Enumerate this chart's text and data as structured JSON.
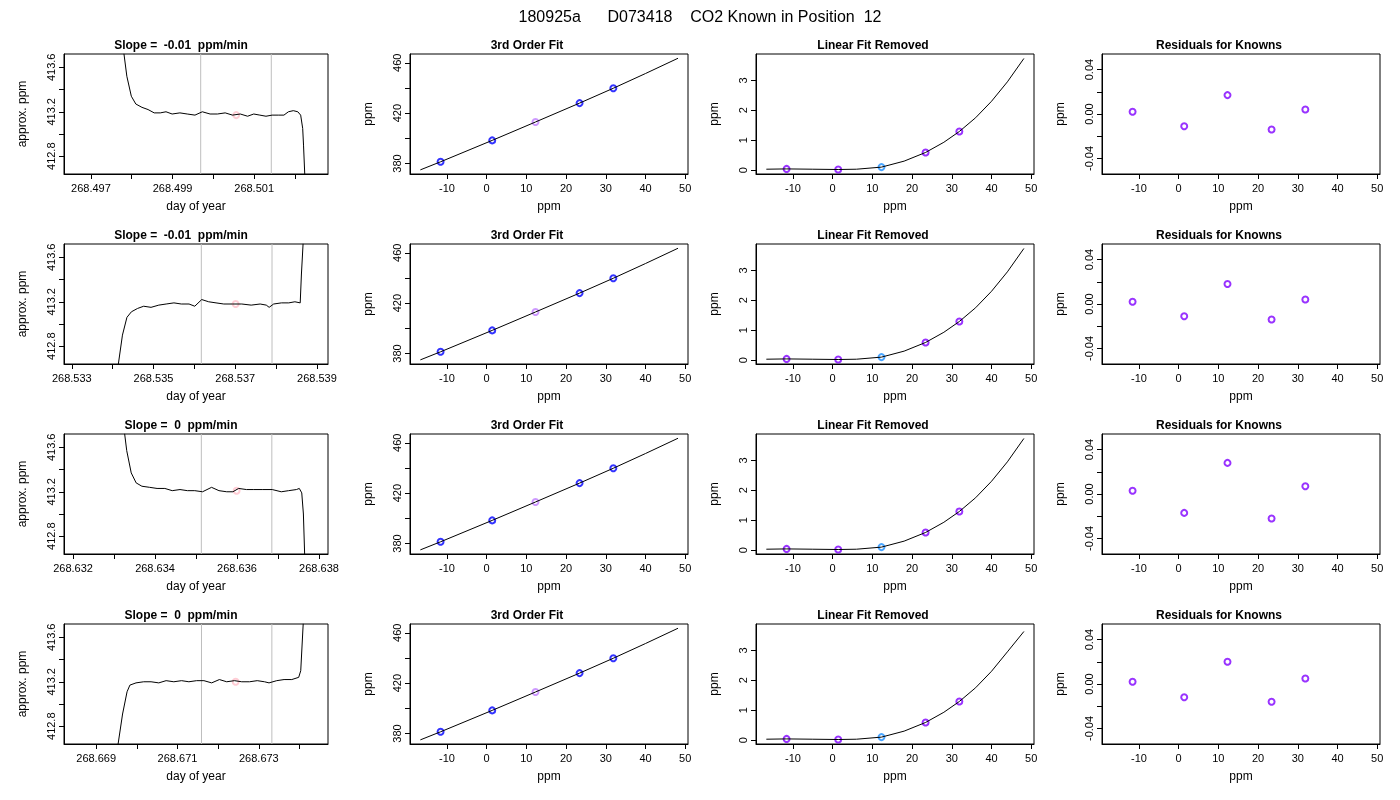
{
  "chart_data": [
    {
      "type": "line",
      "title": "Slope =  -0.01  ppm/min",
      "annotations": [
        "180925a      D073418    CO2 Known in Position  12"
      ],
      "xlabel": "day of year",
      "ylabel": "approx. ppm",
      "xlim": [
        268.49634,
        268.50281
      ],
      "xticks": [
        268.497,
        {
          "value": 268.498,
          "label": null
        },
        268.499,
        {
          "value": 268.5,
          "label": null
        },
        268.501,
        {
          "value": 268.502,
          "label": null
        }
      ],
      "ylim": [
        412.64,
        413.72
      ],
      "yticks": [
        412.8,
        {
          "value": 413.0,
          "label": null
        },
        413.2,
        {
          "value": 413.4,
          "label": null
        },
        413.6
      ],
      "ref_lines": [
        {
          "axis": "x",
          "value": 268.49969,
          "color": "#bebebe"
        },
        {
          "axis": "x",
          "value": 268.50142,
          "color": "#bebebe"
        }
      ],
      "series": [
        {
          "marker": "none",
          "color": "#000000",
          "x": [
            268.49781,
            268.49788,
            268.49799,
            268.4981,
            268.49825,
            268.4984,
            268.49855,
            268.4987,
            268.49884,
            268.49899,
            268.49918,
            268.49936,
            268.49955,
            268.49973,
            268.49992,
            268.5001,
            268.50029,
            268.50047,
            268.50066,
            268.50084,
            268.50099,
            268.50114,
            268.50129,
            268.50144,
            268.50159,
            268.50173,
            268.50184,
            268.50196,
            268.50207,
            268.50214,
            268.50219,
            268.50221,
            268.50224
          ],
          "values": [
            413.72,
            413.52,
            413.34,
            413.27,
            413.24,
            413.22,
            413.19,
            413.19,
            413.2,
            413.18,
            413.19,
            413.18,
            413.17,
            413.2,
            413.18,
            413.18,
            413.19,
            413.17,
            413.18,
            413.16,
            413.18,
            413.17,
            413.16,
            413.17,
            413.17,
            413.17,
            413.2,
            413.21,
            413.2,
            413.17,
            413.05,
            412.9,
            412.64
          ]
        },
        {
          "type": "scatter",
          "marker": "circle",
          "color": "#ffc0cb",
          "x": [
            268.50056
          ],
          "values": [
            413.17
          ]
        }
      ]
    },
    {
      "type": "line",
      "title": "3rd Order Fit",
      "xlabel": "ppm",
      "ylabel": "ppm",
      "xlim": [
        -19.3,
        50.7
      ],
      "xticks": [
        -10,
        0,
        10,
        20,
        30,
        40,
        50
      ],
      "ylim": [
        371.7,
        467
      ],
      "yticks": [
        380,
        {
          "value": 400,
          "label": null
        },
        420,
        {
          "value": 440,
          "label": null
        },
        460
      ],
      "series": [
        {
          "marker": "none",
          "color": "#000000",
          "x": [
            -16.6,
            -11.6,
            1.4,
            12.3,
            23.4,
            31.9,
            40,
            48.1
          ],
          "values": [
            375.1,
            381.4,
            398.4,
            413.0,
            428.0,
            439.8,
            451.5,
            463.5
          ]
        },
        {
          "type": "scatter",
          "marker": "circle",
          "color": "#0000ff",
          "x": [
            -11.6,
            1.4,
            12.3,
            23.4,
            31.9
          ],
          "values": [
            381.4,
            398.4,
            413.0,
            428.0,
            439.8
          ],
          "colors": [
            "#0000ff",
            "#0000ff",
            "#c080ff",
            "#0000ff",
            "#0000ff"
          ]
        }
      ]
    },
    {
      "type": "line",
      "title": "Linear Fit Removed",
      "xlabel": "ppm",
      "ylabel": "ppm",
      "xlim": [
        -19.3,
        50.7
      ],
      "xticks": [
        -10,
        0,
        10,
        20,
        30,
        40,
        50
      ],
      "ylim": [
        -0.13,
        3.88
      ],
      "yticks": [
        0,
        1,
        2,
        3
      ],
      "series": [
        {
          "marker": "none",
          "color": "#000000",
          "x": [
            -16.6,
            -11.6,
            -5,
            1.4,
            6,
            12.3,
            18,
            23.4,
            28,
            31.9,
            36,
            40,
            44,
            48.1
          ],
          "values": [
            0.03,
            0.04,
            0.03,
            0.02,
            0.03,
            0.1,
            0.3,
            0.59,
            0.93,
            1.29,
            1.75,
            2.3,
            2.95,
            3.72
          ]
        },
        {
          "type": "scatter",
          "marker": "circle",
          "color": "#8000ff",
          "x": [
            -11.6,
            1.4,
            12.3,
            23.4,
            31.9
          ],
          "values": [
            0.04,
            0.02,
            0.1,
            0.59,
            1.29
          ],
          "colors": [
            "#8000ff",
            "#8000ff",
            "#1e90ff",
            "#8000ff",
            "#8000ff"
          ]
        }
      ]
    },
    {
      "type": "scatter",
      "title": "Residuals for Knowns",
      "xlabel": "ppm",
      "ylabel": "ppm",
      "xlim": [
        -19.3,
        50.7
      ],
      "xticks": [
        -10,
        0,
        10,
        20,
        30,
        40,
        50
      ],
      "ylim": [
        -0.054,
        0.054
      ],
      "yticks": [
        -0.04,
        {
          "value": -0.02,
          "label": null
        },
        {
          "value": 0,
          "label": "0.00"
        },
        {
          "value": 0.02,
          "label": null
        },
        0.04
      ],
      "series": [
        {
          "marker": "circle",
          "color": "#8000ff",
          "x": [
            -11.6,
            1.4,
            12.3,
            23.4,
            31.9
          ],
          "values": [
            0.002,
            -0.011,
            0.017,
            -0.014,
            0.004
          ]
        }
      ]
    },
    {
      "type": "line",
      "title": "Slope =  -0.01  ppm/min",
      "xlabel": "day of year",
      "ylabel": "approx. ppm",
      "xlim": [
        268.53281,
        268.53927
      ],
      "xticks": [
        268.533,
        {
          "value": 268.534,
          "label": null
        },
        268.535,
        {
          "value": 268.536,
          "label": null
        },
        268.537,
        {
          "value": 268.538,
          "label": null
        },
        268.539
      ],
      "ylim": [
        412.64,
        413.72
      ],
      "yticks": [
        412.8,
        {
          "value": 413.0,
          "label": null
        },
        413.2,
        {
          "value": 413.4,
          "label": null
        },
        413.6
      ],
      "ref_lines": [
        {
          "axis": "x",
          "value": 268.53617,
          "color": "#bebebe"
        },
        {
          "axis": "x",
          "value": 268.5379,
          "color": "#bebebe"
        }
      ],
      "series": [
        {
          "marker": "none",
          "color": "#000000",
          "x": [
            268.53414,
            268.53424,
            268.53435,
            268.53446,
            268.53461,
            268.53476,
            268.53494,
            268.53513,
            268.53531,
            268.5355,
            268.53568,
            268.53587,
            268.53601,
            268.53618,
            268.53635,
            268.53653,
            268.53672,
            268.53694,
            268.53716,
            268.53739,
            268.53761,
            268.53776,
            268.53783,
            268.53794,
            268.53813,
            268.53831,
            268.53846,
            268.53859,
            268.53862,
            268.53866
          ],
          "values": [
            412.64,
            412.9,
            413.06,
            413.11,
            413.14,
            413.16,
            413.15,
            413.17,
            413.18,
            413.19,
            413.18,
            413.18,
            413.16,
            413.22,
            413.2,
            413.19,
            413.18,
            413.18,
            413.18,
            413.17,
            413.18,
            413.17,
            413.15,
            413.18,
            413.19,
            413.19,
            413.2,
            413.19,
            413.45,
            413.72
          ]
        },
        {
          "type": "scatter",
          "marker": "circle",
          "color": "#ffc0cb",
          "x": [
            268.53701
          ],
          "values": [
            413.18
          ]
        }
      ]
    },
    {
      "type": "line",
      "title": "3rd Order Fit",
      "xlabel": "ppm",
      "ylabel": "ppm",
      "xlim": [
        -19.3,
        50.7
      ],
      "xticks": [
        -10,
        0,
        10,
        20,
        30,
        40,
        50
      ],
      "ylim": [
        371.7,
        467
      ],
      "yticks": [
        380,
        {
          "value": 400,
          "label": null
        },
        420,
        {
          "value": 440,
          "label": null
        },
        460
      ],
      "series": [
        {
          "marker": "none",
          "color": "#000000",
          "x": [
            -16.6,
            -11.6,
            1.4,
            12.3,
            23.4,
            31.9,
            40,
            48.1
          ],
          "values": [
            375.1,
            381.4,
            398.4,
            413.0,
            428.0,
            439.8,
            451.5,
            463.5
          ]
        },
        {
          "type": "scatter",
          "marker": "circle",
          "color": "#0000ff",
          "x": [
            -11.6,
            1.4,
            12.3,
            23.4,
            31.9
          ],
          "values": [
            381.4,
            398.4,
            413.0,
            428.0,
            439.8
          ],
          "colors": [
            "#0000ff",
            "#0000ff",
            "#c080ff",
            "#0000ff",
            "#0000ff"
          ]
        }
      ]
    },
    {
      "type": "line",
      "title": "Linear Fit Removed",
      "xlabel": "ppm",
      "ylabel": "ppm",
      "xlim": [
        -19.3,
        50.7
      ],
      "xticks": [
        -10,
        0,
        10,
        20,
        30,
        40,
        50
      ],
      "ylim": [
        -0.13,
        3.88
      ],
      "yticks": [
        0,
        1,
        2,
        3
      ],
      "series": [
        {
          "marker": "none",
          "color": "#000000",
          "x": [
            -16.6,
            -11.6,
            -5,
            1.4,
            6,
            12.3,
            18,
            23.4,
            28,
            31.9,
            36,
            40,
            44,
            48.1
          ],
          "values": [
            0.03,
            0.04,
            0.03,
            0.02,
            0.03,
            0.1,
            0.3,
            0.59,
            0.93,
            1.29,
            1.75,
            2.3,
            2.95,
            3.72
          ]
        },
        {
          "type": "scatter",
          "marker": "circle",
          "color": "#8000ff",
          "x": [
            -11.6,
            1.4,
            12.3,
            23.4,
            31.9
          ],
          "values": [
            0.04,
            0.02,
            0.1,
            0.59,
            1.29
          ],
          "colors": [
            "#8000ff",
            "#8000ff",
            "#1e90ff",
            "#8000ff",
            "#8000ff"
          ]
        }
      ]
    },
    {
      "type": "scatter",
      "title": "Residuals for Knowns",
      "xlabel": "ppm",
      "ylabel": "ppm",
      "xlim": [
        -19.3,
        50.7
      ],
      "xticks": [
        -10,
        0,
        10,
        20,
        30,
        40,
        50
      ],
      "ylim": [
        -0.054,
        0.054
      ],
      "yticks": [
        -0.04,
        {
          "value": -0.02,
          "label": null
        },
        {
          "value": 0,
          "label": "0.00"
        },
        {
          "value": 0.02,
          "label": null
        },
        0.04
      ],
      "series": [
        {
          "marker": "circle",
          "color": "#8000ff",
          "x": [
            -11.6,
            1.4,
            12.3,
            23.4,
            31.9
          ],
          "values": [
            0.002,
            -0.011,
            0.018,
            -0.014,
            0.004
          ]
        }
      ]
    },
    {
      "type": "line",
      "title": "Slope =  0  ppm/min",
      "xlabel": "day of year",
      "ylabel": "approx. ppm",
      "xlim": [
        268.63178,
        268.63822
      ],
      "xticks": [
        268.632,
        {
          "value": 268.633,
          "label": null
        },
        268.634,
        {
          "value": 268.635,
          "label": null
        },
        268.636,
        {
          "value": 268.637,
          "label": null
        },
        268.638
      ],
      "ylim": [
        412.64,
        413.72
      ],
      "yticks": [
        412.8,
        {
          "value": 413.0,
          "label": null
        },
        413.2,
        {
          "value": 413.4,
          "label": null
        },
        413.6
      ],
      "ref_lines": [
        {
          "axis": "x",
          "value": 268.63513,
          "color": "#bebebe"
        },
        {
          "axis": "x",
          "value": 268.63685,
          "color": "#bebebe"
        }
      ],
      "series": [
        {
          "marker": "none",
          "color": "#000000",
          "x": [
            268.63326,
            268.63331,
            268.63342,
            268.63354,
            268.63368,
            268.63387,
            268.63405,
            268.63424,
            268.63442,
            268.63461,
            268.63479,
            268.63497,
            268.63516,
            268.63538,
            268.63556,
            268.63575,
            268.6359,
            268.63604,
            268.63623,
            268.63641,
            268.63663,
            268.63686,
            268.63708,
            268.63726,
            268.63745,
            268.63752,
            268.63758,
            268.63762,
            268.63765
          ],
          "values": [
            413.72,
            413.57,
            413.37,
            413.28,
            413.25,
            413.24,
            413.23,
            413.23,
            413.21,
            413.22,
            413.21,
            413.21,
            413.2,
            413.24,
            413.21,
            413.2,
            413.2,
            413.23,
            413.22,
            413.22,
            413.22,
            413.22,
            413.2,
            413.21,
            413.22,
            413.23,
            413.19,
            413.0,
            412.64
          ]
        },
        {
          "type": "scatter",
          "marker": "circle",
          "color": "#ffc0cb",
          "x": [
            268.63599
          ],
          "values": [
            413.21
          ]
        }
      ]
    },
    {
      "type": "line",
      "title": "3rd Order Fit",
      "xlabel": "ppm",
      "ylabel": "ppm",
      "xlim": [
        -19.3,
        50.7
      ],
      "xticks": [
        -10,
        0,
        10,
        20,
        30,
        40,
        50
      ],
      "ylim": [
        371.7,
        467
      ],
      "yticks": [
        380,
        {
          "value": 400,
          "label": null
        },
        420,
        {
          "value": 440,
          "label": null
        },
        460
      ],
      "series": [
        {
          "marker": "none",
          "color": "#000000",
          "x": [
            -16.6,
            -11.6,
            1.4,
            12.3,
            23.4,
            31.9,
            40,
            48.1
          ],
          "values": [
            375.1,
            381.4,
            398.4,
            413.0,
            428.0,
            439.8,
            451.5,
            463.5
          ]
        },
        {
          "type": "scatter",
          "marker": "circle",
          "color": "#0000ff",
          "x": [
            -11.6,
            1.4,
            12.3,
            23.4,
            31.9
          ],
          "values": [
            381.4,
            398.4,
            413.0,
            428.0,
            439.8
          ],
          "colors": [
            "#0000ff",
            "#0000ff",
            "#c080ff",
            "#0000ff",
            "#0000ff"
          ]
        }
      ]
    },
    {
      "type": "line",
      "title": "Linear Fit Removed",
      "xlabel": "ppm",
      "ylabel": "ppm",
      "xlim": [
        -19.3,
        50.7
      ],
      "xticks": [
        -10,
        0,
        10,
        20,
        30,
        40,
        50
      ],
      "ylim": [
        -0.13,
        3.88
      ],
      "yticks": [
        0,
        1,
        2,
        3
      ],
      "series": [
        {
          "marker": "none",
          "color": "#000000",
          "x": [
            -16.6,
            -11.6,
            -5,
            1.4,
            6,
            12.3,
            18,
            23.4,
            28,
            31.9,
            36,
            40,
            44,
            48.1
          ],
          "values": [
            0.03,
            0.04,
            0.03,
            0.02,
            0.03,
            0.1,
            0.3,
            0.59,
            0.93,
            1.29,
            1.75,
            2.3,
            2.95,
            3.72
          ]
        },
        {
          "type": "scatter",
          "marker": "circle",
          "color": "#8000ff",
          "x": [
            -11.6,
            1.4,
            12.3,
            23.4,
            31.9
          ],
          "values": [
            0.04,
            0.02,
            0.1,
            0.59,
            1.29
          ],
          "colors": [
            "#8000ff",
            "#8000ff",
            "#1e90ff",
            "#8000ff",
            "#8000ff"
          ]
        }
      ]
    },
    {
      "type": "scatter",
      "title": "Residuals for Knowns",
      "xlabel": "ppm",
      "ylabel": "ppm",
      "xlim": [
        -19.3,
        50.7
      ],
      "xticks": [
        -10,
        0,
        10,
        20,
        30,
        40,
        50
      ],
      "ylim": [
        -0.054,
        0.054
      ],
      "yticks": [
        -0.04,
        {
          "value": -0.02,
          "label": null
        },
        {
          "value": 0,
          "label": "0.00"
        },
        {
          "value": 0.02,
          "label": null
        },
        0.04
      ],
      "series": [
        {
          "marker": "circle",
          "color": "#8000ff",
          "x": [
            -11.6,
            1.4,
            12.3,
            23.4,
            31.9
          ],
          "values": [
            0.003,
            -0.017,
            0.028,
            -0.022,
            0.007
          ]
        }
      ]
    },
    {
      "type": "line",
      "title": "Slope =  0  ppm/min",
      "xlabel": "day of year",
      "ylabel": "approx. ppm",
      "xlim": [
        268.66821,
        268.6747
      ],
      "xticks": [
        268.669,
        {
          "value": 268.67,
          "label": null
        },
        268.671,
        {
          "value": 268.672,
          "label": null
        },
        268.673,
        {
          "value": 268.674,
          "label": null
        }
      ],
      "ylim": [
        412.64,
        413.72
      ],
      "yticks": [
        412.8,
        {
          "value": 413.0,
          "label": null
        },
        413.2,
        {
          "value": 413.4,
          "label": null
        },
        413.6
      ],
      "ref_lines": [
        {
          "axis": "x",
          "value": 268.67159,
          "color": "#bebebe"
        },
        {
          "axis": "x",
          "value": 268.67332,
          "color": "#bebebe"
        }
      ],
      "series": [
        {
          "marker": "none",
          "color": "#000000",
          "x": [
            268.66954,
            268.66965,
            268.66976,
            268.66983,
            268.66998,
            268.67017,
            268.67035,
            268.67054,
            268.67072,
            268.67091,
            268.6711,
            268.67128,
            268.67147,
            268.67165,
            268.67184,
            268.67203,
            268.67221,
            268.6724,
            268.67258,
            268.67277,
            268.67296,
            268.67314,
            268.67325,
            268.67344,
            268.67362,
            268.67381,
            268.67398,
            268.67403,
            268.67409
          ],
          "values": [
            412.64,
            412.91,
            413.11,
            413.17,
            413.19,
            413.2,
            413.2,
            413.19,
            413.21,
            413.2,
            413.21,
            413.2,
            413.21,
            413.21,
            413.19,
            413.22,
            413.2,
            413.21,
            413.2,
            413.2,
            413.21,
            413.2,
            413.19,
            413.21,
            413.22,
            413.22,
            413.24,
            413.3,
            413.72
          ]
        },
        {
          "type": "scatter",
          "marker": "circle",
          "color": "#ffc0cb",
          "x": [
            268.67243
          ],
          "values": [
            413.2
          ]
        }
      ]
    },
    {
      "type": "line",
      "title": "3rd Order Fit",
      "xlabel": "ppm",
      "ylabel": "ppm",
      "xlim": [
        -19.3,
        50.7
      ],
      "xticks": [
        -10,
        0,
        10,
        20,
        30,
        40,
        50
      ],
      "ylim": [
        371.7,
        467
      ],
      "yticks": [
        380,
        {
          "value": 400,
          "label": null
        },
        420,
        {
          "value": 440,
          "label": null
        },
        460
      ],
      "series": [
        {
          "marker": "none",
          "color": "#000000",
          "x": [
            -16.6,
            -11.6,
            1.4,
            12.3,
            23.4,
            31.9,
            40,
            48.1
          ],
          "values": [
            375.1,
            381.4,
            398.4,
            413.0,
            428.0,
            439.8,
            451.5,
            463.5
          ]
        },
        {
          "type": "scatter",
          "marker": "circle",
          "color": "#0000ff",
          "x": [
            -11.6,
            1.4,
            12.3,
            23.4,
            31.9
          ],
          "values": [
            381.4,
            398.4,
            413.0,
            428.0,
            439.8
          ],
          "colors": [
            "#0000ff",
            "#0000ff",
            "#c080ff",
            "#0000ff",
            "#0000ff"
          ]
        }
      ]
    },
    {
      "type": "line",
      "title": "Linear Fit Removed",
      "xlabel": "ppm",
      "ylabel": "ppm",
      "xlim": [
        -19.3,
        50.7
      ],
      "xticks": [
        -10,
        0,
        10,
        20,
        30,
        40,
        50
      ],
      "ylim": [
        -0.13,
        3.88
      ],
      "yticks": [
        0,
        1,
        2,
        3
      ],
      "series": [
        {
          "marker": "none",
          "color": "#000000",
          "x": [
            -16.6,
            -11.6,
            -5,
            1.4,
            6,
            12.3,
            18,
            23.4,
            28,
            31.9,
            36,
            40,
            44,
            48.1
          ],
          "values": [
            0.03,
            0.04,
            0.03,
            0.02,
            0.03,
            0.1,
            0.3,
            0.59,
            0.93,
            1.29,
            1.75,
            2.3,
            2.95,
            3.62
          ]
        },
        {
          "type": "scatter",
          "marker": "circle",
          "color": "#8000ff",
          "x": [
            -11.6,
            1.4,
            12.3,
            23.4,
            31.9
          ],
          "values": [
            0.04,
            0.02,
            0.1,
            0.59,
            1.29
          ],
          "colors": [
            "#8000ff",
            "#8000ff",
            "#1e90ff",
            "#8000ff",
            "#8000ff"
          ]
        }
      ]
    },
    {
      "type": "scatter",
      "title": "Residuals for Knowns",
      "xlabel": "ppm",
      "ylabel": "ppm",
      "xlim": [
        -19.3,
        50.7
      ],
      "xticks": [
        -10,
        0,
        10,
        20,
        30,
        40,
        50
      ],
      "ylim": [
        -0.054,
        0.054
      ],
      "yticks": [
        -0.04,
        {
          "value": -0.02,
          "label": null
        },
        {
          "value": 0,
          "label": "0.00"
        },
        {
          "value": 0.02,
          "label": null
        },
        0.04
      ],
      "series": [
        {
          "marker": "circle",
          "color": "#8000ff",
          "x": [
            -11.6,
            1.4,
            12.3,
            23.4,
            31.9
          ],
          "values": [
            0.002,
            -0.012,
            0.02,
            -0.016,
            0.005
          ]
        }
      ]
    }
  ]
}
